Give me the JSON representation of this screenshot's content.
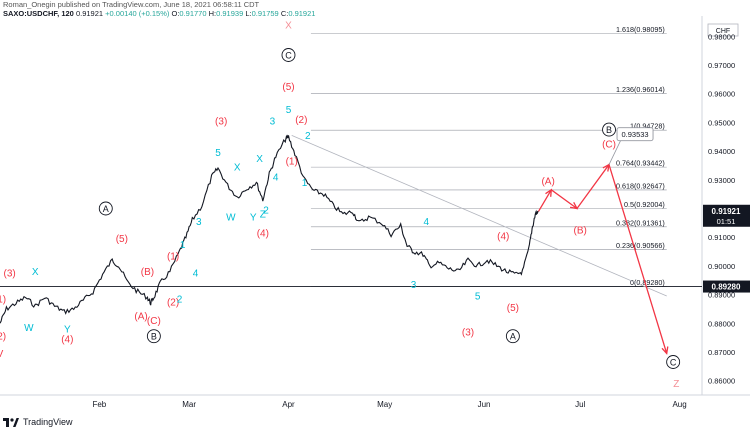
{
  "header": {
    "line1": "Roman_Onegin published on TradingView.com, June 18, 2021 06:58:11 CDT",
    "symbol": "SAXO:USDCHF, 120",
    "last": "0.91921",
    "change": "+0.00140 (+0.15%)",
    "o_label": "O:",
    "o": "0.91770",
    "h_label": "H:",
    "h": "0.91939",
    "l_label": "L:",
    "l": "0.91759",
    "c_label": "C:",
    "c": "0.91921"
  },
  "footer": {
    "brand": "TradingView"
  },
  "chart_data": {
    "type": "line",
    "currency": "CHF",
    "ylim": [
      0.855,
      0.985
    ],
    "y_ticks": [
      0.86,
      0.87,
      0.88,
      0.89,
      0.9,
      0.91,
      0.92,
      0.93,
      0.94,
      0.95,
      0.96,
      0.97,
      0.98
    ],
    "y_tick_labels": [
      "0.86000",
      "0.87000",
      "0.88000",
      "0.89000",
      "0.90000",
      "0.91000",
      "0.92000",
      "0.93000",
      "0.94000",
      "0.95000",
      "0.96000",
      "0.97000",
      "0.98000"
    ],
    "x_ticks": [
      "Feb",
      "Mar",
      "Apr",
      "May",
      "Jun",
      "Jul",
      "Aug"
    ],
    "x_tick_dates": [
      "2021-02-01",
      "2021-03-01",
      "2021-04-01",
      "2021-05-01",
      "2021-06-01",
      "2021-07-01",
      "2021-08-01"
    ],
    "xlim": [
      "2021-01-01",
      "2021-08-08"
    ],
    "price_series": {
      "name": "SAXO:USDCHF",
      "color": "#131722",
      "points": [
        [
          "2021-01-01",
          0.88
        ],
        [
          "2021-01-03",
          0.885
        ],
        [
          "2021-01-06",
          0.887
        ],
        [
          "2021-01-09",
          0.889
        ],
        [
          "2021-01-12",
          0.886
        ],
        [
          "2021-01-15",
          0.889
        ],
        [
          "2021-01-18",
          0.886
        ],
        [
          "2021-01-21",
          0.884
        ],
        [
          "2021-01-24",
          0.885
        ],
        [
          "2021-01-27",
          0.888
        ],
        [
          "2021-01-30",
          0.891
        ],
        [
          "2021-02-02",
          0.897
        ],
        [
          "2021-02-05",
          0.902
        ],
        [
          "2021-02-07",
          0.9
        ],
        [
          "2021-02-10",
          0.894
        ],
        [
          "2021-02-13",
          0.891
        ],
        [
          "2021-02-16",
          0.889
        ],
        [
          "2021-02-17",
          0.887
        ],
        [
          "2021-02-18",
          0.889
        ],
        [
          "2021-02-20",
          0.894
        ],
        [
          "2021-02-23",
          0.898
        ],
        [
          "2021-02-26",
          0.905
        ],
        [
          "2021-02-28",
          0.91
        ],
        [
          "2021-03-02",
          0.916
        ],
        [
          "2021-03-05",
          0.921
        ],
        [
          "2021-03-08",
          0.931
        ],
        [
          "2021-03-10",
          0.934
        ],
        [
          "2021-03-13",
          0.928
        ],
        [
          "2021-03-16",
          0.924
        ],
        [
          "2021-03-19",
          0.927
        ],
        [
          "2021-03-22",
          0.929
        ],
        [
          "2021-03-24",
          0.923
        ],
        [
          "2021-03-26",
          0.932
        ],
        [
          "2021-03-28",
          0.938
        ],
        [
          "2021-03-31",
          0.944
        ],
        [
          "2021-04-01",
          0.945
        ],
        [
          "2021-04-03",
          0.939
        ],
        [
          "2021-04-06",
          0.93
        ],
        [
          "2021-04-09",
          0.926
        ],
        [
          "2021-04-12",
          0.925
        ],
        [
          "2021-04-15",
          0.921
        ],
        [
          "2021-04-18",
          0.918
        ],
        [
          "2021-04-21",
          0.919
        ],
        [
          "2021-04-23",
          0.915
        ],
        [
          "2021-04-26",
          0.917
        ],
        [
          "2021-04-30",
          0.915
        ],
        [
          "2021-05-03",
          0.911
        ],
        [
          "2021-05-06",
          0.914
        ],
        [
          "2021-05-08",
          0.907
        ],
        [
          "2021-05-10",
          0.905
        ],
        [
          "2021-05-13",
          0.904
        ],
        [
          "2021-05-15",
          0.9
        ],
        [
          "2021-05-18",
          0.901
        ],
        [
          "2021-05-21",
          0.899
        ],
        [
          "2021-05-24",
          0.898
        ],
        [
          "2021-05-27",
          0.902
        ],
        [
          "2021-05-30",
          0.9
        ],
        [
          "2021-06-02",
          0.902
        ],
        [
          "2021-06-05",
          0.9
        ],
        [
          "2021-06-08",
          0.898
        ],
        [
          "2021-06-11",
          0.897
        ],
        [
          "2021-06-13",
          0.898
        ],
        [
          "2021-06-15",
          0.906
        ],
        [
          "2021-06-16",
          0.913
        ],
        [
          "2021-06-17",
          0.918
        ],
        [
          "2021-06-18",
          0.919
        ]
      ]
    },
    "fib_levels": [
      {
        "label": "1.618(0.98095)",
        "value": 0.98095
      },
      {
        "label": "1.236(0.96014)",
        "value": 0.96014
      },
      {
        "label": "1(0.94728)",
        "value": 0.94728
      },
      {
        "label": "0.764(0.93442)",
        "value": 0.93442
      },
      {
        "label": "0.618(0.92647)",
        "value": 0.92647
      },
      {
        "label": "0.5(0.92004)",
        "value": 0.92004
      },
      {
        "label": "0.382(0.91361)",
        "value": 0.91361
      },
      {
        "label": "0.236(0.90566)",
        "value": 0.90566
      },
      {
        "label": "0(0.89280)",
        "value": 0.8928
      }
    ],
    "fib_start_date": "2021-04-08",
    "fib_end_date": "2021-07-28",
    "last_price_label": {
      "value": "0.91921",
      "timer": "01:51",
      "price": 0.91921
    },
    "level_price_label": {
      "value": "0.89280",
      "price": 0.8928
    },
    "callout": {
      "text": "0.93533",
      "date": "2021-07-10",
      "price": 0.9405
    },
    "trendline": [
      [
        "2021-04-02",
        0.9455
      ],
      [
        "2021-07-28",
        0.8895
      ]
    ],
    "hline": {
      "price": 0.8928
    },
    "projection_path": [
      [
        "2021-06-18",
        0.919
      ],
      [
        "2021-06-22",
        0.9265
      ],
      [
        "2021-06-30",
        0.92
      ],
      [
        "2021-07-10",
        0.9353
      ],
      [
        "2021-07-28",
        0.8695
      ]
    ],
    "colors": {
      "red": "#f23645",
      "teal": "#00bcd4",
      "black": "#131722",
      "grey": "#b2b5be",
      "arrow": "#f23645"
    },
    "wave_labels": [
      {
        "text": "(3)",
        "date": "2021-01-04",
        "price": 0.8975,
        "color": "red"
      },
      {
        "text": "X",
        "date": "2021-01-12",
        "price": 0.898,
        "color": "teal"
      },
      {
        "text": "(5)",
        "date": "2021-02-08",
        "price": 0.9095,
        "color": "red"
      },
      {
        "text": "A",
        "date": "2021-02-03",
        "price": 0.92,
        "color": "circle"
      },
      {
        "text": "W",
        "date": "2021-01-10",
        "price": 0.8785,
        "color": "teal"
      },
      {
        "text": "Y",
        "date": "2021-01-22",
        "price": 0.878,
        "color": "teal"
      },
      {
        "text": "(4)",
        "date": "2021-01-22",
        "price": 0.8745,
        "color": "red"
      },
      {
        "text": "(B)",
        "date": "2021-02-16",
        "price": 0.898,
        "color": "red"
      },
      {
        "text": "(A)",
        "date": "2021-02-14",
        "price": 0.8825,
        "color": "red"
      },
      {
        "text": "(C)",
        "date": "2021-02-18",
        "price": 0.881,
        "color": "red"
      },
      {
        "text": "B",
        "date": "2021-02-18",
        "price": 0.8755,
        "color": "circle"
      },
      {
        "text": "(1)",
        "date": "2021-02-24",
        "price": 0.9035,
        "color": "red"
      },
      {
        "text": "(2)",
        "date": "2021-02-24",
        "price": 0.8875,
        "color": "red"
      },
      {
        "text": "2",
        "date": "2021-02-26",
        "price": 0.8885,
        "color": "teal"
      },
      {
        "text": "1",
        "date": "2021-02-27",
        "price": 0.9075,
        "color": "teal"
      },
      {
        "text": "3",
        "date": "2021-03-04",
        "price": 0.9155,
        "color": "teal"
      },
      {
        "text": "4",
        "date": "2021-03-03",
        "price": 0.8975,
        "color": "teal"
      },
      {
        "text": "(3)",
        "date": "2021-03-11",
        "price": 0.9505,
        "color": "red"
      },
      {
        "text": "5",
        "date": "2021-03-10",
        "price": 0.9395,
        "color": "teal"
      },
      {
        "text": "X",
        "date": "2021-03-16",
        "price": 0.9345,
        "color": "teal"
      },
      {
        "text": "W",
        "date": "2021-03-14",
        "price": 0.917,
        "color": "teal"
      },
      {
        "text": "Y",
        "date": "2021-03-21",
        "price": 0.917,
        "color": "teal"
      },
      {
        "text": "X",
        "date": "2021-03-23",
        "price": 0.9375,
        "color": "teal"
      },
      {
        "text": "Z",
        "date": "2021-03-24",
        "price": 0.918,
        "color": "teal"
      },
      {
        "text": "2",
        "date": "2021-03-25",
        "price": 0.9195,
        "color": "teal"
      },
      {
        "text": "(4)",
        "date": "2021-03-24",
        "price": 0.9115,
        "color": "red"
      },
      {
        "text": "3",
        "date": "2021-03-27",
        "price": 0.9505,
        "color": "teal"
      },
      {
        "text": "4",
        "date": "2021-03-28",
        "price": 0.931,
        "color": "teal"
      },
      {
        "text": "(5)",
        "date": "2021-04-01",
        "price": 0.9625,
        "color": "red"
      },
      {
        "text": "5",
        "date": "2021-04-01",
        "price": 0.9545,
        "color": "teal"
      },
      {
        "text": "(1)",
        "date": "2021-04-02",
        "price": 0.9365,
        "color": "red"
      },
      {
        "text": "(2)",
        "date": "2021-04-05",
        "price": 0.951,
        "color": "red"
      },
      {
        "text": "2",
        "date": "2021-04-07",
        "price": 0.9455,
        "color": "teal"
      },
      {
        "text": "1",
        "date": "2021-04-06",
        "price": 0.929,
        "color": "teal"
      },
      {
        "text": "C",
        "date": "2021-04-01",
        "price": 0.9735,
        "color": "circle"
      },
      {
        "text": "X",
        "date": "2021-04-01",
        "price": 0.984,
        "color": "redlight"
      },
      {
        "text": "4",
        "date": "2021-05-14",
        "price": 0.9155,
        "color": "teal"
      },
      {
        "text": "3",
        "date": "2021-05-10",
        "price": 0.8935,
        "color": "teal"
      },
      {
        "text": "(3)",
        "date": "2021-05-27",
        "price": 0.877,
        "color": "red"
      },
      {
        "text": "5",
        "date": "2021-05-30",
        "price": 0.8895,
        "color": "teal"
      },
      {
        "text": "(4)",
        "date": "2021-06-07",
        "price": 0.9105,
        "color": "red"
      },
      {
        "text": "(5)",
        "date": "2021-06-10",
        "price": 0.8855,
        "color": "red"
      },
      {
        "text": "A",
        "date": "2021-06-10",
        "price": 0.8755,
        "color": "circle"
      },
      {
        "text": "(A)",
        "date": "2021-06-21",
        "price": 0.9295,
        "color": "red"
      },
      {
        "text": "(B)",
        "date": "2021-07-01",
        "price": 0.9125,
        "color": "red"
      },
      {
        "text": "(C)",
        "date": "2021-07-10",
        "price": 0.9425,
        "color": "red"
      },
      {
        "text": "B",
        "date": "2021-07-10",
        "price": 0.9475,
        "color": "circle"
      },
      {
        "text": "C",
        "date": "2021-07-30",
        "price": 0.8665,
        "color": "circle"
      },
      {
        "text": "Z",
        "date": "2021-07-31",
        "price": 0.859,
        "color": "redlight"
      },
      {
        "text": "(2)",
        "date": "2021-01-01",
        "price": 0.8755,
        "color": "red"
      },
      {
        "text": "(1)",
        "date": "2021-01-01",
        "price": 0.8885,
        "color": "red"
      },
      {
        "text": "V",
        "date": "2021-01-01",
        "price": 0.8695,
        "color": "red"
      }
    ]
  }
}
